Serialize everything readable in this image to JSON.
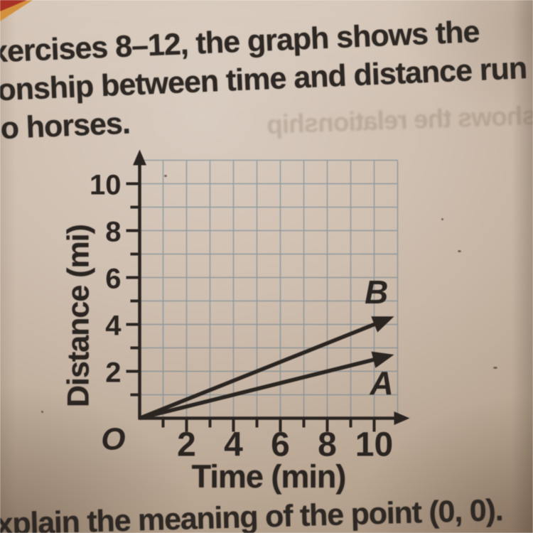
{
  "page": {
    "heading_lines": [
      "xercises 8–12, the graph shows the",
      "onship between time and distance run",
      "o horses."
    ],
    "ghost_text": "shows the relationship",
    "bottom_text": "xplain the meaning of the point (0, 0)."
  },
  "chart_data": {
    "type": "line",
    "title": "",
    "xlabel": "Time (min)",
    "ylabel": "Distance (mi)",
    "origin_label": "O",
    "xlim": [
      0,
      11
    ],
    "ylim": [
      0,
      11
    ],
    "x_ticks_labeled": [
      2,
      4,
      6,
      8,
      10
    ],
    "y_ticks_labeled": [
      2,
      4,
      6,
      8,
      10
    ],
    "minor_ticks_every": 1,
    "grid": true,
    "legend_position": "inline-labels",
    "series": [
      {
        "name": "B",
        "points": [
          [
            0,
            0
          ],
          [
            10,
            4
          ]
        ]
      },
      {
        "name": "A",
        "points": [
          [
            0,
            0
          ],
          [
            10,
            2.5
          ]
        ]
      }
    ]
  },
  "colors": {
    "paper": "#c4b2a1",
    "grid_blue": "#6b8292",
    "ink": "#2b2522",
    "corner_red": "#a93226",
    "corner_orange": "#d4913d"
  }
}
